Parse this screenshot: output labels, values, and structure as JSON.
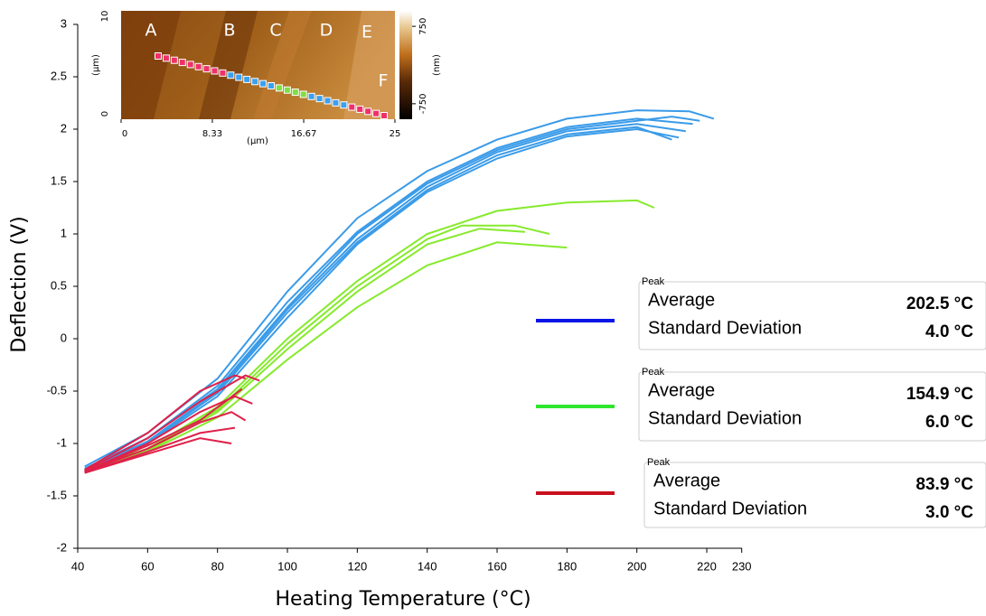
{
  "chart_data": {
    "type": "line",
    "x_label": "Heating Temperature (°C)",
    "y_label": "Deflection (V)",
    "xlim": [
      40,
      230
    ],
    "xticks": [
      40,
      60,
      80,
      100,
      120,
      140,
      160,
      180,
      200,
      220,
      230
    ],
    "ylim": [
      -2,
      3
    ],
    "yticks": [
      -2,
      -1.5,
      -1,
      -0.5,
      0,
      0.5,
      1,
      1.5,
      2,
      2.5,
      3
    ],
    "series": [
      {
        "color": "#3a9be8",
        "x": [
          42,
          60,
          80,
          100,
          120,
          140,
          160,
          180,
          200,
          215,
          222
        ],
        "values": [
          -1.22,
          -0.9,
          -0.38,
          0.45,
          1.15,
          1.6,
          1.9,
          2.1,
          2.18,
          2.17,
          2.1
        ]
      },
      {
        "color": "#3a9be8",
        "x": [
          42,
          60,
          80,
          100,
          120,
          140,
          160,
          180,
          200,
          216
        ],
        "values": [
          -1.25,
          -0.95,
          -0.45,
          0.35,
          1.02,
          1.5,
          1.82,
          2.02,
          2.1,
          2.05
        ]
      },
      {
        "color": "#3a9be8",
        "x": [
          42,
          60,
          80,
          100,
          120,
          140,
          160,
          180,
          200,
          214
        ],
        "values": [
          -1.25,
          -0.98,
          -0.5,
          0.28,
          0.95,
          1.45,
          1.78,
          1.98,
          2.05,
          1.98
        ]
      },
      {
        "color": "#3a9be8",
        "x": [
          42,
          60,
          80,
          100,
          120,
          140,
          160,
          180,
          200,
          212
        ],
        "values": [
          -1.27,
          -1.0,
          -0.55,
          0.2,
          0.9,
          1.4,
          1.72,
          1.93,
          2.0,
          1.92
        ]
      },
      {
        "color": "#3a9be8",
        "x": [
          42,
          60,
          80,
          100,
          120,
          140,
          160,
          180,
          200,
          210,
          218
        ],
        "values": [
          -1.24,
          -0.95,
          -0.48,
          0.3,
          1.0,
          1.48,
          1.8,
          2.0,
          2.08,
          2.12,
          2.08
        ]
      },
      {
        "color": "#3a9be8",
        "x": [
          42,
          60,
          80,
          100,
          120,
          140,
          160,
          180,
          200,
          210
        ],
        "values": [
          -1.26,
          -0.99,
          -0.52,
          0.25,
          0.92,
          1.42,
          1.75,
          1.95,
          2.02,
          1.9
        ]
      },
      {
        "color": "#86ea2c",
        "x": [
          42,
          60,
          80,
          100,
          120,
          140,
          160,
          180,
          200,
          205
        ],
        "values": [
          -1.25,
          -1.05,
          -0.65,
          0.0,
          0.55,
          1.0,
          1.22,
          1.3,
          1.32,
          1.25
        ]
      },
      {
        "color": "#86ea2c",
        "x": [
          42,
          60,
          80,
          100,
          120,
          140,
          150,
          165,
          175
        ],
        "values": [
          -1.25,
          -1.05,
          -0.68,
          -0.05,
          0.5,
          0.95,
          1.08,
          1.08,
          1.0
        ]
      },
      {
        "color": "#86ea2c",
        "x": [
          42,
          60,
          80,
          100,
          120,
          140,
          155,
          168
        ],
        "values": [
          -1.26,
          -1.07,
          -0.7,
          -0.1,
          0.45,
          0.9,
          1.05,
          1.02
        ]
      },
      {
        "color": "#86ea2c",
        "x": [
          42,
          60,
          80,
          100,
          120,
          140,
          160,
          180
        ],
        "values": [
          -1.27,
          -1.08,
          -0.75,
          -0.2,
          0.3,
          0.7,
          0.92,
          0.87
        ]
      },
      {
        "color": "#e0204a",
        "x": [
          42,
          60,
          75,
          85,
          88
        ],
        "values": [
          -1.25,
          -0.9,
          -0.5,
          -0.35,
          -0.38
        ]
      },
      {
        "color": "#e0204a",
        "x": [
          42,
          60,
          75,
          88,
          92
        ],
        "values": [
          -1.26,
          -0.95,
          -0.6,
          -0.35,
          -0.4
        ]
      },
      {
        "color": "#e0204a",
        "x": [
          42,
          60,
          75,
          85,
          90
        ],
        "values": [
          -1.27,
          -1.0,
          -0.7,
          -0.55,
          -0.62
        ]
      },
      {
        "color": "#e0204a",
        "x": [
          42,
          60,
          75,
          84,
          88
        ],
        "values": [
          -1.27,
          -1.05,
          -0.8,
          -0.7,
          -0.78
        ]
      },
      {
        "color": "#e0204a",
        "x": [
          42,
          60,
          75,
          85
        ],
        "values": [
          -1.28,
          -1.08,
          -0.9,
          -0.85
        ]
      },
      {
        "color": "#e0204a",
        "x": [
          42,
          60,
          75,
          84
        ],
        "values": [
          -1.28,
          -1.1,
          -0.95,
          -1.0
        ]
      },
      {
        "color": "#e0204a",
        "x": [
          42,
          60,
          75,
          87
        ],
        "values": [
          -1.27,
          -1.02,
          -0.78,
          -0.48
        ]
      }
    ],
    "legend": [
      {
        "color": "#0a14e6",
        "title": "Peak",
        "rows": [
          [
            "Average",
            "202.5 °C"
          ],
          [
            "Standard Deviation",
            "4.0 °C"
          ]
        ]
      },
      {
        "color": "#2ee62e",
        "title": "Peak",
        "rows": [
          [
            "Average",
            "154.9 °C"
          ],
          [
            "Standard Deviation",
            "6.0 °C"
          ]
        ]
      },
      {
        "color": "#c8101e",
        "title": "Peak",
        "rows": [
          [
            "Average",
            "83.9 °C"
          ],
          [
            "Standard Deviation",
            "3.0 °C"
          ]
        ]
      }
    ],
    "inset": {
      "letters": [
        "A",
        "B",
        "C",
        "D",
        "E",
        "F"
      ],
      "xlim": [
        0,
        25
      ],
      "xticks": [
        0,
        8.33,
        16.67,
        25
      ],
      "x_label": "(μm)",
      "ylim": [
        0,
        10
      ],
      "yticks": [
        0,
        10
      ],
      "y_label": "(μm)",
      "clim": [
        -1050,
        1050
      ],
      "cticks": [
        -750,
        750
      ],
      "c_label": "(nm)",
      "dots": [
        {
          "color": "#f0306a",
          "count": 9
        },
        {
          "color": "#3aa0f0",
          "count": 6
        },
        {
          "color": "#7ee040",
          "count": 4
        },
        {
          "color": "#3aa0f0",
          "count": 5
        },
        {
          "color": "#f0306a",
          "count": 5
        }
      ]
    }
  }
}
